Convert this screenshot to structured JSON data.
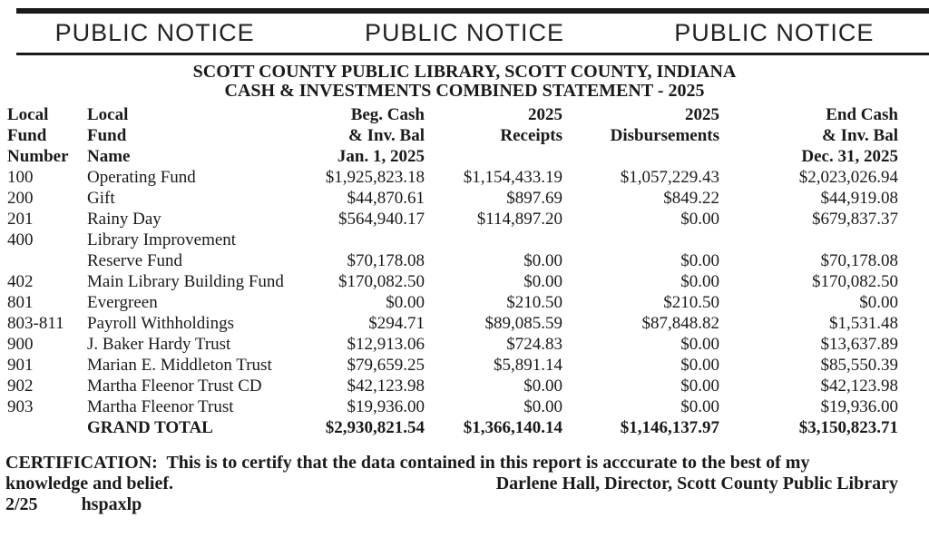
{
  "notice_banner": {
    "labels": [
      "PUBLIC NOTICE",
      "PUBLIC NOTICE",
      "PUBLIC NOTICE"
    ]
  },
  "title": {
    "line1": "SCOTT COUNTY PUBLIC LIBRARY, SCOTT COUNTY, INDIANA",
    "line2": "CASH & INVESTMENTS COMBINED STATEMENT - 2025"
  },
  "table": {
    "columns": [
      {
        "id": "fund-number",
        "lines": [
          "Local",
          "Fund",
          "Number"
        ],
        "align": "left"
      },
      {
        "id": "fund-name",
        "lines": [
          "Local",
          "Fund",
          "Name"
        ],
        "align": "left"
      },
      {
        "id": "beg-cash",
        "lines": [
          "Beg. Cash",
          "& Inv. Bal",
          "Jan. 1, 2025"
        ],
        "align": "right"
      },
      {
        "id": "receipts",
        "lines": [
          "2025",
          "Receipts"
        ],
        "align": "right"
      },
      {
        "id": "disbursements",
        "lines": [
          "2025",
          "Disbursements"
        ],
        "align": "right"
      },
      {
        "id": "end-cash",
        "lines": [
          "End Cash",
          "& Inv. Bal",
          "Dec. 31, 2025"
        ],
        "align": "right"
      }
    ],
    "rows": [
      {
        "num": "100",
        "name": "Operating Fund",
        "beg": "$1,925,823.18",
        "rec": "$1,154,433.19",
        "dis": "$1,057,229.43",
        "end": "$2,023,026.94",
        "indent": false,
        "bold": false
      },
      {
        "num": "200",
        "name": "Gift",
        "beg": "$44,870.61",
        "rec": "$897.69",
        "dis": "$849.22",
        "end": "$44,919.08",
        "indent": false,
        "bold": false
      },
      {
        "num": "201",
        "name": "Rainy Day",
        "beg": "$564,940.17",
        "rec": "$114,897.20",
        "dis": "$0.00",
        "end": "$679,837.37",
        "indent": false,
        "bold": false
      },
      {
        "num": "400",
        "name": "Library Improvement",
        "beg": "",
        "rec": "",
        "dis": "",
        "end": "",
        "indent": false,
        "bold": false
      },
      {
        "num": "",
        "name": "Reserve Fund",
        "beg": "$70,178.08",
        "rec": "$0.00",
        "dis": "$0.00",
        "end": "$70,178.08",
        "indent": true,
        "bold": false
      },
      {
        "num": "402",
        "name": "Main Library Building Fund",
        "beg": "$170,082.50",
        "rec": "$0.00",
        "dis": "$0.00",
        "end": "$170,082.50",
        "indent": false,
        "bold": false
      },
      {
        "num": "801",
        "name": "Evergreen",
        "beg": "$0.00",
        "rec": "$210.50",
        "dis": "$210.50",
        "end": "$0.00",
        "indent": false,
        "bold": false
      },
      {
        "num": "803-811",
        "name": "Payroll Withholdings",
        "beg": "$294.71",
        "rec": "$89,085.59",
        "dis": "$87,848.82",
        "end": "$1,531.48",
        "indent": false,
        "bold": false
      },
      {
        "num": "900",
        "name": "J. Baker Hardy Trust",
        "beg": "$12,913.06",
        "rec": "$724.83",
        "dis": "$0.00",
        "end": "$13,637.89",
        "indent": false,
        "bold": false
      },
      {
        "num": "901",
        "name": "Marian E. Middleton Trust",
        "beg": "$79,659.25",
        "rec": "$5,891.14",
        "dis": "$0.00",
        "end": "$85,550.39",
        "indent": false,
        "bold": false
      },
      {
        "num": "902",
        "name": "Martha Fleenor Trust CD",
        "beg": "$42,123.98",
        "rec": "$0.00",
        "dis": "$0.00",
        "end": "$42,123.98",
        "indent": false,
        "bold": false
      },
      {
        "num": "903",
        "name": "Martha Fleenor Trust",
        "beg": "$19,936.00",
        "rec": "$0.00",
        "dis": "$0.00",
        "end": "$19,936.00",
        "indent": false,
        "bold": false
      },
      {
        "num": "",
        "name": "GRAND TOTAL",
        "beg": "$2,930,821.54",
        "rec": "$1,366,140.14",
        "dis": "$1,146,137.97",
        "end": "$3,150,823.71",
        "indent": false,
        "bold": true
      }
    ]
  },
  "certification": {
    "line1": "CERTIFICATION:  This is to certify that the data contained in this report is acccurate to the best of my",
    "line2_left": "knowledge and belief.",
    "line2_right": "Darlene Hall, Director, Scott County Public Library",
    "footer_date": "2/25",
    "footer_code": "hspaxlp"
  },
  "colors": {
    "text": "#1a1a1a",
    "background": "#ffffff",
    "rule": "#1a1a1a"
  }
}
